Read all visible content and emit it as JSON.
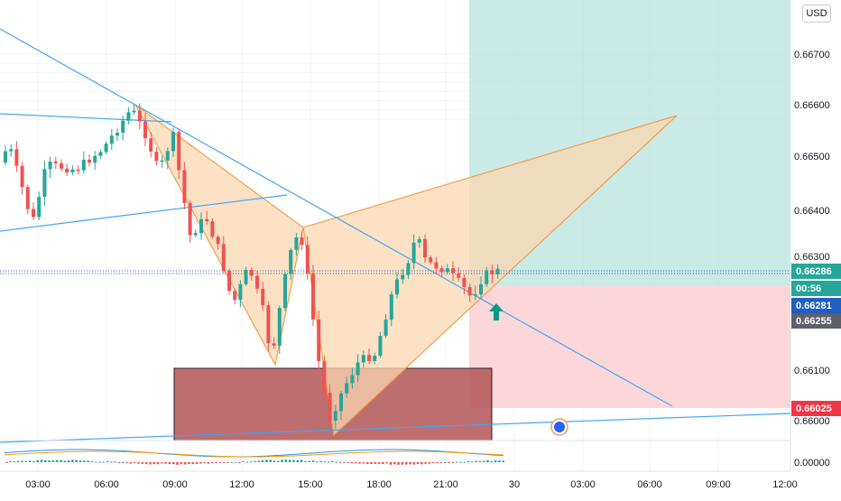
{
  "currency_button": "USD",
  "colors": {
    "up": "#26a69a",
    "down": "#ef5350",
    "pattern_fill": "#fbd7b0",
    "pattern_stroke": "#f0a050",
    "trend": "#42a5f5",
    "target_fill": "#b8e3dd",
    "stop_fill": "#fbd0d2",
    "supply_zone": "#b55557",
    "macd_line": "#2196f3",
    "signal_line": "#ff9800",
    "current_tag": "#26a69a",
    "countdown_tag": "#26a69a",
    "mark_tag": "#1e5fbf",
    "gray_tag": "#5d606b",
    "stop_tag": "#f23645",
    "arrow": "#089981"
  },
  "price_tags": [
    {
      "value": "0.66286",
      "kind": "current"
    },
    {
      "value": "00:56",
      "kind": "countdown"
    },
    {
      "value": "0.66281",
      "kind": "mark"
    },
    {
      "value": "0.66255",
      "kind": "gray"
    },
    {
      "value": "0.66025",
      "kind": "stop"
    }
  ],
  "icons": {
    "arrow": "up-arrow-icon",
    "flag": "flag-icon"
  },
  "chart_data": {
    "type": "candlestick",
    "symbol_currency": "USD",
    "y_ticks": [
      "0.66700",
      "0.66600",
      "0.66500",
      "0.66400",
      "0.66300",
      "0.66100",
      "0.66000"
    ],
    "x_ticks": [
      "03:00",
      "06:00",
      "09:00",
      "12:00",
      "15:00",
      "18:00",
      "21:00",
      "30",
      "03:00",
      "06:00",
      "09:00",
      "12:00"
    ],
    "indicator_ticks": [
      "0.00000"
    ],
    "y_range": [
      0.6594,
      0.6676
    ],
    "current_price": 0.66286,
    "countdown": "00:56",
    "levels": [
      0.66281,
      0.66255,
      0.66025
    ],
    "pattern": "harmonic (XABCD)"
  }
}
